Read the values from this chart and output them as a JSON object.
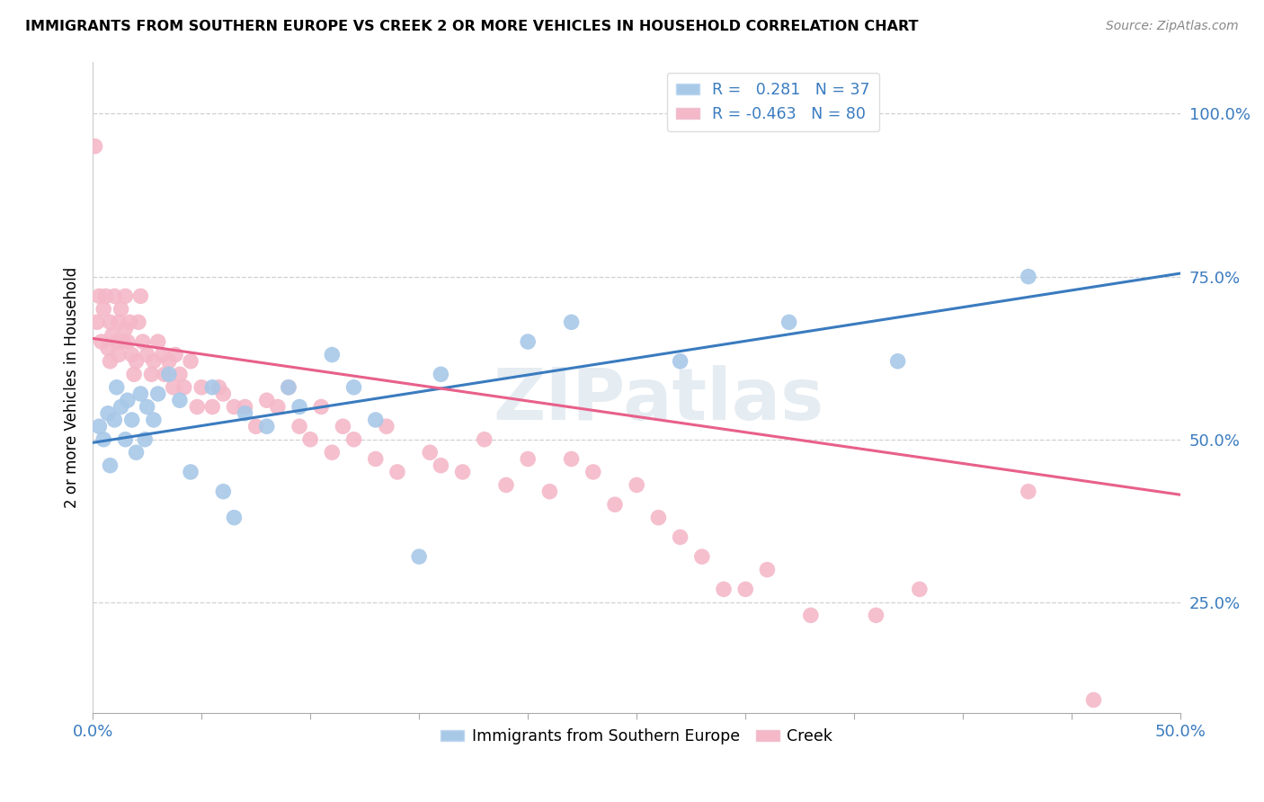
{
  "title": "IMMIGRANTS FROM SOUTHERN EUROPE VS CREEK 2 OR MORE VEHICLES IN HOUSEHOLD CORRELATION CHART",
  "source": "Source: ZipAtlas.com",
  "ylabel": "2 or more Vehicles in Household",
  "yticks": [
    "25.0%",
    "50.0%",
    "75.0%",
    "100.0%"
  ],
  "ytick_vals": [
    0.25,
    0.5,
    0.75,
    1.0
  ],
  "xlim": [
    0.0,
    0.5
  ],
  "ylim": [
    0.08,
    1.08
  ],
  "legend_label1": "R =   0.281   N = 37",
  "legend_label2": "R = -0.463   N = 80",
  "legend_label_bottom1": "Immigrants from Southern Europe",
  "legend_label_bottom2": "Creek",
  "blue_color": "#a8c8e8",
  "pink_color": "#f4b8c8",
  "line_blue": "#3a7bbf",
  "line_pink": "#e8608a",
  "watermark": "ZIPatlas",
  "blue_line_x": [
    0.0,
    0.5
  ],
  "blue_line_y": [
    0.495,
    0.755
  ],
  "pink_line_x": [
    0.0,
    0.5
  ],
  "pink_line_y": [
    0.655,
    0.415
  ],
  "blue_x": [
    0.003,
    0.005,
    0.007,
    0.008,
    0.01,
    0.011,
    0.013,
    0.015,
    0.016,
    0.018,
    0.02,
    0.022,
    0.024,
    0.025,
    0.028,
    0.03,
    0.035,
    0.04,
    0.045,
    0.055,
    0.06,
    0.065,
    0.07,
    0.08,
    0.09,
    0.095,
    0.11,
    0.12,
    0.13,
    0.15,
    0.16,
    0.2,
    0.22,
    0.27,
    0.32,
    0.37,
    0.43
  ],
  "blue_y": [
    0.52,
    0.5,
    0.54,
    0.46,
    0.53,
    0.58,
    0.55,
    0.5,
    0.56,
    0.53,
    0.48,
    0.57,
    0.5,
    0.55,
    0.53,
    0.57,
    0.6,
    0.56,
    0.45,
    0.58,
    0.42,
    0.38,
    0.54,
    0.52,
    0.58,
    0.55,
    0.63,
    0.58,
    0.53,
    0.32,
    0.6,
    0.65,
    0.68,
    0.62,
    0.68,
    0.62,
    0.75
  ],
  "pink_x": [
    0.001,
    0.002,
    0.003,
    0.004,
    0.005,
    0.006,
    0.007,
    0.008,
    0.008,
    0.009,
    0.01,
    0.011,
    0.012,
    0.012,
    0.013,
    0.014,
    0.015,
    0.015,
    0.016,
    0.017,
    0.018,
    0.019,
    0.02,
    0.021,
    0.022,
    0.023,
    0.025,
    0.027,
    0.028,
    0.03,
    0.032,
    0.033,
    0.035,
    0.037,
    0.038,
    0.04,
    0.042,
    0.045,
    0.048,
    0.05,
    0.055,
    0.058,
    0.06,
    0.065,
    0.07,
    0.075,
    0.08,
    0.085,
    0.09,
    0.095,
    0.1,
    0.105,
    0.11,
    0.115,
    0.12,
    0.13,
    0.135,
    0.14,
    0.155,
    0.16,
    0.17,
    0.18,
    0.19,
    0.2,
    0.21,
    0.22,
    0.23,
    0.24,
    0.25,
    0.26,
    0.27,
    0.28,
    0.29,
    0.3,
    0.31,
    0.33,
    0.36,
    0.38,
    0.43,
    0.46
  ],
  "pink_y": [
    0.95,
    0.68,
    0.72,
    0.65,
    0.7,
    0.72,
    0.64,
    0.68,
    0.62,
    0.66,
    0.72,
    0.65,
    0.68,
    0.63,
    0.7,
    0.65,
    0.72,
    0.67,
    0.65,
    0.68,
    0.63,
    0.6,
    0.62,
    0.68,
    0.72,
    0.65,
    0.63,
    0.6,
    0.62,
    0.65,
    0.63,
    0.6,
    0.62,
    0.58,
    0.63,
    0.6,
    0.58,
    0.62,
    0.55,
    0.58,
    0.55,
    0.58,
    0.57,
    0.55,
    0.55,
    0.52,
    0.56,
    0.55,
    0.58,
    0.52,
    0.5,
    0.55,
    0.48,
    0.52,
    0.5,
    0.47,
    0.52,
    0.45,
    0.48,
    0.46,
    0.45,
    0.5,
    0.43,
    0.47,
    0.42,
    0.47,
    0.45,
    0.4,
    0.43,
    0.38,
    0.35,
    0.32,
    0.27,
    0.27,
    0.3,
    0.23,
    0.23,
    0.27,
    0.42,
    0.1
  ]
}
